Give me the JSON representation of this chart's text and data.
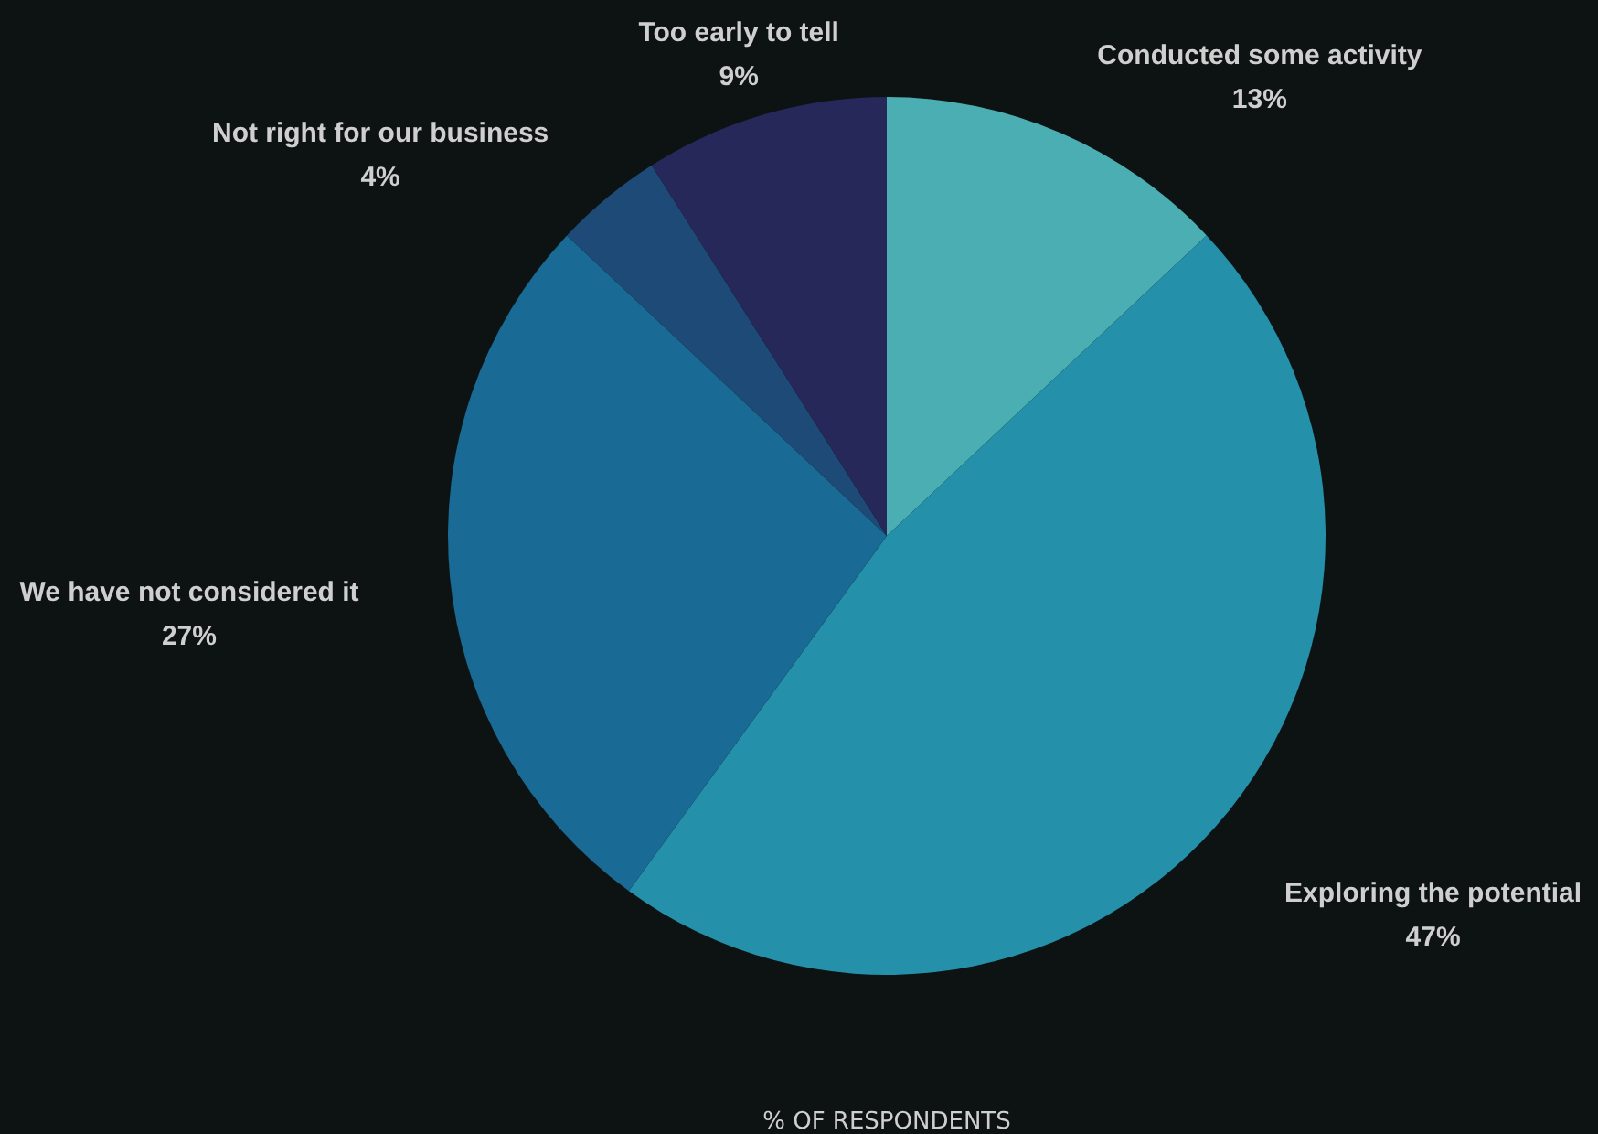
{
  "chart_data": {
    "type": "pie",
    "xlabel": "% OF RESPONDENTS",
    "categories": [
      "Conducted some activity",
      "Exploring the potential",
      "We have not considered it",
      "Not right for our business",
      "Too early to tell"
    ],
    "values": [
      13,
      47,
      27,
      4,
      9
    ],
    "colors": [
      "#4aaeb3",
      "#2490aa",
      "#196a94",
      "#1e4a78",
      "#252858"
    ],
    "value_labels": [
      "13%",
      "47%",
      "27%",
      "4%",
      "9%"
    ]
  }
}
